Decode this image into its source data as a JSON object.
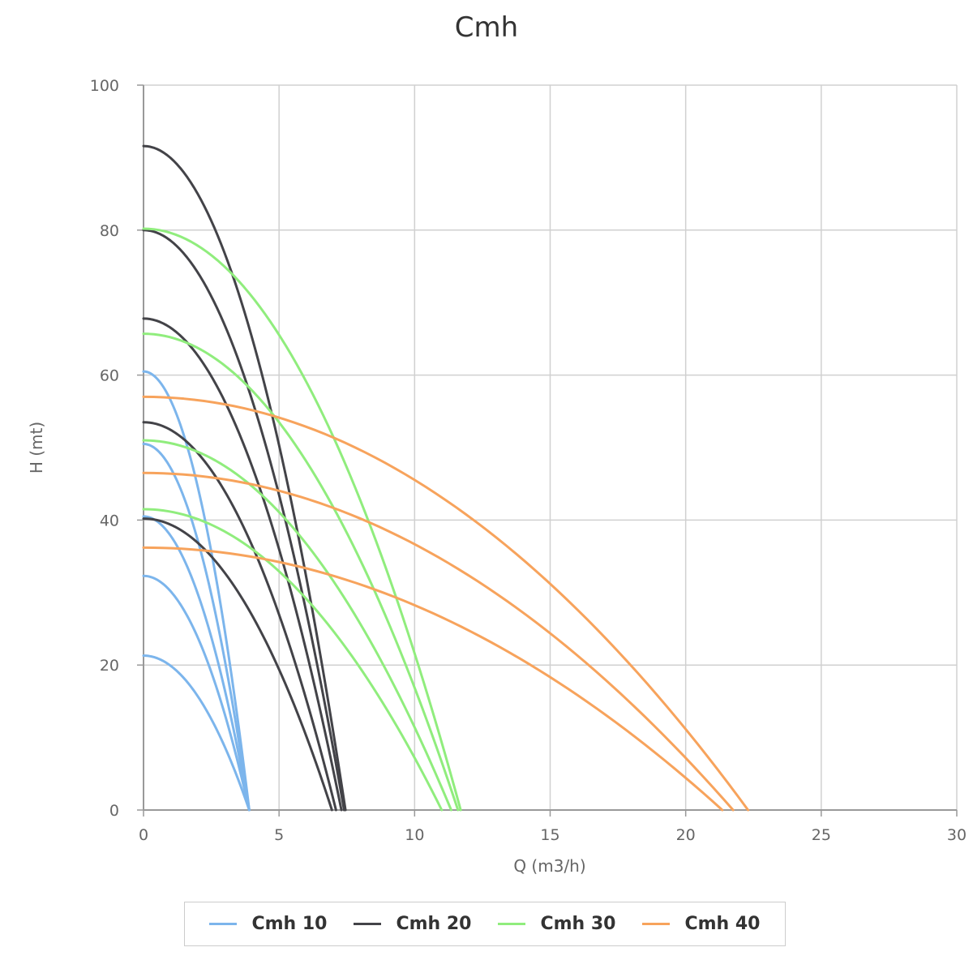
{
  "chart_data": {
    "type": "line",
    "title": "Cmh",
    "xlabel": "Q (m3/h)",
    "ylabel": "H (mt)",
    "xlim": [
      0,
      30
    ],
    "ylim": [
      0,
      100
    ],
    "xticks": [
      "0",
      "5",
      "10",
      "15",
      "20",
      "25",
      "30"
    ],
    "yticks": [
      "0",
      "20",
      "40",
      "60",
      "80",
      "100"
    ],
    "grid": true,
    "legend_position": "bottom",
    "groups": [
      {
        "name": "Cmh 10",
        "color": "#7cb5ec",
        "curves": [
          {
            "h0": 60.5,
            "qmax": 3.9
          },
          {
            "h0": 50.5,
            "qmax": 3.9
          },
          {
            "h0": 40.5,
            "qmax": 3.9
          },
          {
            "h0": 32.3,
            "qmax": 3.9
          },
          {
            "h0": 21.3,
            "qmax": 3.9
          }
        ]
      },
      {
        "name": "Cmh 20",
        "color": "#434348",
        "curves": [
          {
            "h0": 91.6,
            "qmax": 7.45
          },
          {
            "h0": 80.0,
            "qmax": 7.4
          },
          {
            "h0": 67.8,
            "qmax": 7.3
          },
          {
            "h0": 53.5,
            "qmax": 7.1
          },
          {
            "h0": 40.2,
            "qmax": 6.95
          }
        ]
      },
      {
        "name": "Cmh 30",
        "color": "#90ed7d",
        "curves": [
          {
            "h0": 80.2,
            "qmax": 11.7
          },
          {
            "h0": 65.7,
            "qmax": 11.6
          },
          {
            "h0": 51.0,
            "qmax": 11.35
          },
          {
            "h0": 41.5,
            "qmax": 11.0
          }
        ]
      },
      {
        "name": "Cmh 40",
        "color": "#f7a35c",
        "curves": [
          {
            "h0": 57.0,
            "qmax": 22.3
          },
          {
            "h0": 46.5,
            "qmax": 21.75
          },
          {
            "h0": 36.2,
            "qmax": 21.35
          }
        ]
      }
    ]
  }
}
